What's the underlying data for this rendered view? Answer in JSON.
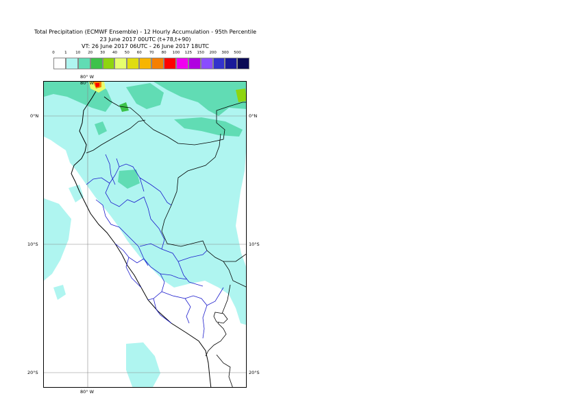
{
  "title": {
    "line1": "Total Precipitation (ECMWF Ensemble) - 12 Hourly Accumulation - 95th Percentile",
    "line2": "23 June 2017 00UTC (t+78,t+90)",
    "line3": "VT: 26 June 2017 06UTC - 26 June 2017 18UTC"
  },
  "legend": {
    "labels": [
      "0",
      "1",
      "10",
      "20",
      "30",
      "40",
      "50",
      "60",
      "70",
      "80",
      "100",
      "125",
      "150",
      "200",
      "300",
      "500"
    ],
    "colors": [
      "#ffffff",
      "#aff5f0",
      "#61dcb4",
      "#3dc24a",
      "#8fd50f",
      "#e6ff6e",
      "#e0dc10",
      "#f7b500",
      "#f57f00",
      "#ff0000",
      "#f000f0",
      "#b000e0",
      "#8a4dff",
      "#3333cc",
      "#1a1a99",
      "#0a0a55"
    ]
  },
  "map": {
    "lon_label": "80° W",
    "lat_labels": {
      "n0": "0°N",
      "s10": "10°S",
      "s20": "20°S"
    }
  }
}
